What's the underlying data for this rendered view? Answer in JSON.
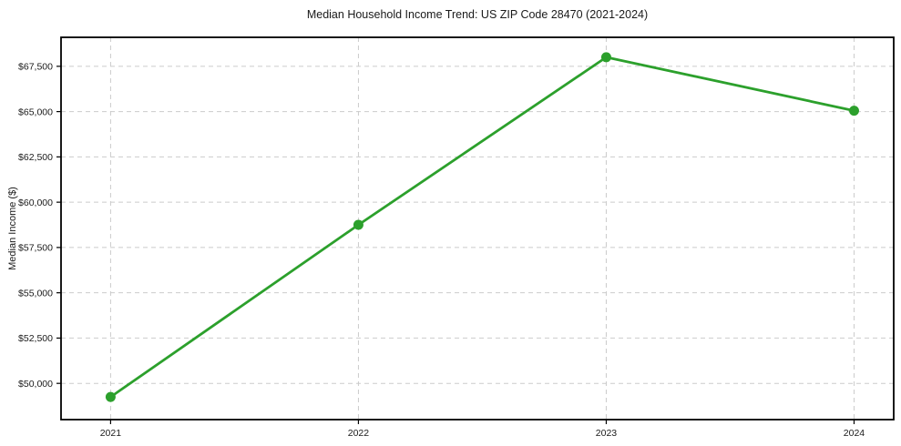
{
  "chart_data": {
    "type": "line",
    "title": "Median Household Income Trend: US ZIP Code 28470 (2021-2024)",
    "xlabel": "",
    "ylabel": "Median Income ($)",
    "x": [
      2021,
      2022,
      2023,
      2024
    ],
    "x_tick_labels": [
      "2021",
      "2022",
      "2023",
      "2024"
    ],
    "values": [
      49250,
      58750,
      68000,
      65050
    ],
    "ytick_values": [
      50000,
      52500,
      55000,
      57500,
      60000,
      62500,
      65000,
      67500
    ],
    "ytick_labels": [
      "$50,000",
      "$52,500",
      "$55,000",
      "$57,500",
      "$60,000",
      "$62,500",
      "$65,000",
      "$67,500"
    ],
    "xlim": [
      2020.8,
      2024.16
    ],
    "ylim": [
      48000,
      69100
    ],
    "grid": true,
    "legend": false,
    "line_color": "#2ca02c",
    "grid_color": "#cbcbcb",
    "spine_color": "#000000",
    "background": "#ffffff"
  }
}
